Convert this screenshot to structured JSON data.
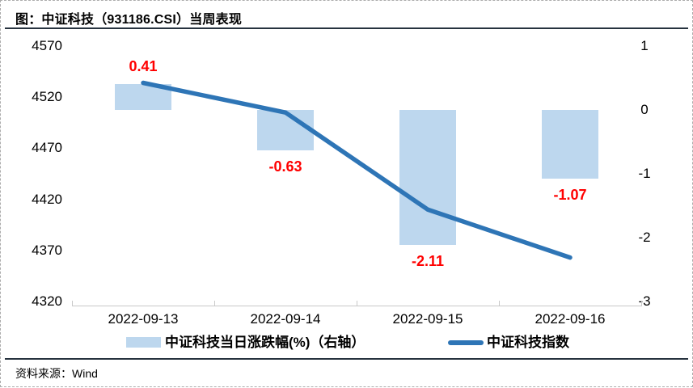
{
  "window": {
    "title": "图：中证科技（931186.CSI）当周表现"
  },
  "footer": {
    "source": "资料来源：Wind"
  },
  "legend": {
    "bar": {
      "label": "中证科技当日涨跌幅(%)（右轴）",
      "color": "#BDD7EE"
    },
    "line": {
      "label": "中证科技指数",
      "color": "#2E75B6"
    }
  },
  "colors": {
    "bar_fill": "#BDD7EE",
    "line": "#2E75B6",
    "data_label": "#FF0000",
    "axis_line": "#C9C9C9",
    "rule": "#26323E",
    "frame_border": "#ABABAB"
  },
  "chart_data": {
    "type": "bar",
    "title": "中证科技（931186.CSI）当周表现",
    "categories": [
      "2022-09-13",
      "2022-09-14",
      "2022-09-15",
      "2022-09-16"
    ],
    "series": [
      {
        "name": "中证科技当日涨跌幅(%)（右轴）",
        "type": "bar",
        "axis": "right",
        "values": [
          0.41,
          -0.63,
          -2.11,
          -1.07
        ],
        "data_labels": [
          "0.41",
          "-0.63",
          "-2.11",
          "-1.07"
        ],
        "data_label_color": "#FF0000"
      },
      {
        "name": "中证科技指数",
        "type": "line",
        "axis": "left",
        "values": [
          4534,
          4505,
          4410,
          4363
        ]
      }
    ],
    "left_axis": {
      "min": 4320,
      "max": 4570,
      "ticks": [
        "4570",
        "4520",
        "4470",
        "4420",
        "4370",
        "4320"
      ]
    },
    "right_axis": {
      "min": -3,
      "max": 1,
      "ticks": [
        "1",
        "0",
        "-1",
        "-2",
        "-3"
      ]
    },
    "grid": false,
    "legend_position": "bottom"
  }
}
